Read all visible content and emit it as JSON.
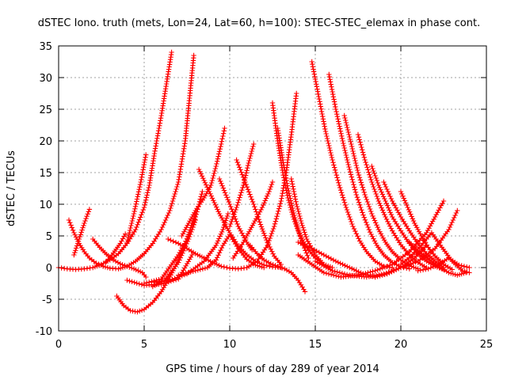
{
  "chart_data": {
    "type": "scatter",
    "title": "dSTEC Iono. truth (mets, Lon=24, Lat=60, h=100): STEC-STEC_elemax in phase cont.",
    "xlabel": "GPS time / hours of day 289 of year 2014",
    "ylabel": "dSTEC  / TECUs",
    "xlim": [
      0,
      25
    ],
    "ylim": [
      -10,
      35
    ],
    "xticks": [
      0,
      5,
      10,
      15,
      20,
      25
    ],
    "yticks": [
      -10,
      -5,
      0,
      5,
      10,
      15,
      20,
      25,
      30,
      35
    ],
    "grid": true,
    "marker": "+",
    "color": "#ff0000",
    "series": [
      {
        "x": [
          0.0,
          0.5,
          1.0,
          1.5,
          2.0,
          2.5,
          3.0,
          3.5,
          4.0,
          4.5,
          5.0,
          5.3,
          5.6,
          6.0,
          6.3,
          6.6
        ],
        "y": [
          0.0,
          -0.2,
          -0.3,
          -0.2,
          0.0,
          0.5,
          1.2,
          2.2,
          3.8,
          6.0,
          9.5,
          13.0,
          18.0,
          24.0,
          29.0,
          34.0
        ]
      },
      {
        "x": [
          0.6,
          0.9,
          1.2,
          1.5,
          1.8,
          2.2,
          2.6,
          3.0,
          3.5,
          4.0,
          4.5,
          5.0,
          5.5,
          6.0,
          6.5,
          7.0,
          7.4,
          7.9
        ],
        "y": [
          7.5,
          5.5,
          3.8,
          2.5,
          1.5,
          0.7,
          0.2,
          -0.1,
          -0.2,
          0.2,
          1.0,
          2.2,
          3.8,
          6.0,
          9.0,
          13.5,
          20.0,
          33.5
        ]
      },
      {
        "x": [
          0.9,
          1.2,
          1.5,
          1.8
        ],
        "y": [
          2.0,
          4.5,
          7.0,
          9.2
        ]
      },
      {
        "x": [
          2.0,
          2.4,
          2.8,
          3.2,
          3.6,
          4.0,
          4.4,
          4.9,
          5.1
        ],
        "y": [
          4.5,
          3.2,
          2.1,
          1.2,
          0.6,
          0.2,
          -0.2,
          -0.8,
          -1.5
        ]
      },
      {
        "x": [
          2.8,
          3.2,
          3.6,
          3.9
        ],
        "y": [
          1.0,
          2.3,
          3.8,
          5.3
        ]
      },
      {
        "x": [
          3.4,
          3.8,
          4.2,
          4.6,
          5.0,
          5.5,
          6.0,
          6.5,
          7.0,
          7.5,
          8.0
        ],
        "y": [
          -4.5,
          -6.0,
          -6.8,
          -7.0,
          -6.6,
          -5.5,
          -3.8,
          -1.5,
          1.2,
          4.5,
          8.5
        ]
      },
      {
        "x": [
          4.0,
          4.4,
          4.8,
          5.1
        ],
        "y": [
          4.0,
          8.5,
          13.5,
          17.8
        ]
      },
      {
        "x": [
          4.0,
          5.0,
          6.0,
          7.0,
          7.8
        ],
        "y": [
          -2.0,
          -2.8,
          -2.6,
          -1.8,
          2.0
        ]
      },
      {
        "x": [
          5.0,
          6.0,
          7.0,
          7.8,
          8.2,
          8.4
        ],
        "y": [
          -2.5,
          -1.8,
          2.0,
          6.0,
          10.0,
          12.0
        ]
      },
      {
        "x": [
          5.5,
          6.2,
          7.0,
          7.6,
          8.0
        ],
        "y": [
          -3.0,
          -2.0,
          0.8,
          4.5,
          7.5
        ]
      },
      {
        "x": [
          6.4,
          7.0,
          7.5,
          8.0,
          8.5,
          9.0,
          9.5,
          10.0,
          10.5,
          11.0
        ],
        "y": [
          4.5,
          3.8,
          3.0,
          2.2,
          1.5,
          0.8,
          0.2,
          -0.1,
          -0.2,
          0.0
        ]
      },
      {
        "x": [
          5.6,
          6.5,
          7.5,
          8.5,
          9.2,
          9.6,
          9.9
        ],
        "y": [
          -2.3,
          -2.0,
          -1.0,
          1.0,
          3.5,
          6.0,
          8.5
        ]
      },
      {
        "x": [
          7.0,
          8.0,
          8.7,
          9.2,
          9.6,
          10.0,
          10.5,
          11.0,
          11.5,
          12.0
        ],
        "y": [
          -1.2,
          -0.5,
          0.0,
          1.2,
          3.5,
          5.2,
          3.0,
          1.3,
          0.4,
          0.0
        ]
      },
      {
        "x": [
          7.2,
          7.6,
          8.0,
          8.5,
          8.9,
          9.2,
          9.5,
          9.7
        ],
        "y": [
          5.0,
          7.0,
          9.0,
          11.0,
          13.0,
          16.0,
          19.5,
          22.0
        ]
      },
      {
        "x": [
          8.2,
          8.8,
          9.4,
          10.0,
          10.5,
          11.0,
          11.5,
          12.0,
          12.5,
          13.0
        ],
        "y": [
          15.5,
          12.0,
          8.5,
          5.5,
          3.4,
          2.0,
          1.0,
          0.4,
          0.1,
          0.0
        ]
      },
      {
        "x": [
          9.4,
          10.0,
          10.5,
          11.0,
          11.3
        ],
        "y": [
          14.0,
          10.0,
          6.5,
          4.0,
          2.8
        ]
      },
      {
        "x": [
          10.4,
          10.9,
          11.4,
          11.8,
          12.2,
          12.6,
          13.0
        ],
        "y": [
          17.0,
          13.5,
          10.0,
          6.8,
          4.0,
          1.8,
          0.5
        ]
      },
      {
        "x": [
          10.0,
          10.4,
          10.8,
          11.1,
          11.4
        ],
        "y": [
          6.5,
          9.5,
          13.0,
          16.5,
          19.5
        ]
      },
      {
        "x": [
          10.2,
          10.8,
          11.4,
          11.9,
          12.3,
          12.5
        ],
        "y": [
          1.5,
          4.0,
          7.0,
          9.5,
          12.0,
          13.5
        ]
      },
      {
        "x": [
          11.2,
          11.6,
          12.0,
          12.4,
          12.8,
          13.2,
          13.6,
          14.0,
          14.4
        ],
        "y": [
          3.5,
          2.2,
          1.2,
          0.6,
          0.2,
          -0.2,
          -0.8,
          -2.0,
          -3.8
        ]
      },
      {
        "x": [
          12.5,
          12.8,
          13.1,
          13.4,
          13.7,
          14.0,
          14.3,
          14.6,
          15.0,
          15.5,
          16.0
        ],
        "y": [
          26.0,
          20.0,
          15.0,
          11.0,
          8.0,
          5.8,
          4.0,
          2.8,
          1.5,
          0.5,
          0.0
        ]
      },
      {
        "x": [
          12.8,
          13.1,
          13.4,
          13.7,
          14.0,
          14.3,
          14.6
        ],
        "y": [
          22.0,
          17.0,
          12.5,
          9.0,
          6.0,
          3.5,
          1.5
        ]
      },
      {
        "x": [
          11.0,
          11.6,
          12.2,
          12.6,
          13.0,
          13.3,
          13.6,
          13.9
        ],
        "y": [
          0.0,
          1.0,
          3.5,
          6.5,
          10.5,
          15.0,
          21.0,
          27.5
        ]
      },
      {
        "x": [
          13.6,
          13.9,
          14.2,
          14.5,
          15.0,
          15.5,
          16.0
        ],
        "y": [
          14.0,
          10.0,
          7.0,
          4.5,
          2.0,
          0.5,
          -0.5
        ]
      },
      {
        "x": [
          14.8,
          15.2,
          15.6,
          16.0,
          16.4,
          16.8,
          17.2,
          17.6,
          18.0,
          18.5,
          19.0,
          19.5
        ],
        "y": [
          32.5,
          27.0,
          21.5,
          17.0,
          13.0,
          9.5,
          6.5,
          4.2,
          2.5,
          1.0,
          0.2,
          0.0
        ]
      },
      {
        "x": [
          15.8,
          16.2,
          16.6,
          17.0,
          17.4,
          17.8,
          18.2,
          18.6,
          19.0,
          19.5,
          20.0,
          20.5
        ],
        "y": [
          30.5,
          25.0,
          20.0,
          15.5,
          11.5,
          8.3,
          5.6,
          3.5,
          2.0,
          0.8,
          0.1,
          -0.2
        ]
      },
      {
        "x": [
          16.7,
          17.1,
          17.5,
          17.9,
          18.3,
          18.7,
          19.1,
          19.5,
          20.0,
          20.5,
          21.0
        ],
        "y": [
          24.0,
          19.5,
          15.0,
          11.5,
          8.5,
          6.0,
          4.0,
          2.5,
          1.2,
          0.3,
          -0.2
        ]
      },
      {
        "x": [
          17.5,
          17.9,
          18.3,
          18.7,
          19.1,
          19.5,
          20.0,
          20.5,
          21.0,
          21.5
        ],
        "y": [
          21.0,
          17.0,
          13.5,
          10.5,
          8.0,
          5.8,
          3.6,
          2.0,
          0.8,
          0.0
        ]
      },
      {
        "x": [
          18.3,
          18.7,
          19.1,
          19.5,
          20.0,
          20.5,
          21.0,
          21.5,
          22.0,
          22.5
        ],
        "y": [
          16.0,
          13.0,
          10.5,
          8.0,
          5.8,
          3.8,
          2.2,
          1.0,
          0.2,
          -0.3
        ]
      },
      {
        "x": [
          19.0,
          19.5,
          20.0,
          20.5,
          21.0,
          21.5,
          22.0,
          22.5
        ],
        "y": [
          13.5,
          10.5,
          8.0,
          5.8,
          3.8,
          2.2,
          1.0,
          0.0
        ]
      },
      {
        "x": [
          20.0,
          20.4,
          20.8,
          21.2,
          21.6,
          22.0,
          22.5,
          23.0
        ],
        "y": [
          12.0,
          9.5,
          7.0,
          5.0,
          3.2,
          1.8,
          0.5,
          -0.3
        ]
      },
      {
        "x": [
          14.0,
          14.8,
          15.5,
          16.2,
          17.0,
          17.8,
          18.5,
          19.2,
          20.0,
          20.8,
          21.5
        ],
        "y": [
          4.0,
          3.0,
          2.0,
          1.0,
          0.0,
          -1.0,
          -1.5,
          -1.0,
          0.0,
          1.5,
          3.5
        ]
      },
      {
        "x": [
          14.0,
          14.8,
          15.5,
          16.5,
          17.5,
          18.5,
          19.5,
          20.5,
          21.5,
          22.0,
          22.5
        ],
        "y": [
          2.0,
          0.5,
          -0.8,
          -1.5,
          -1.2,
          -0.5,
          0.5,
          2.5,
          5.5,
          8.0,
          10.5
        ]
      },
      {
        "x": [
          15.0,
          16.0,
          17.0,
          18.0,
          19.0,
          20.0,
          21.0,
          22.0,
          22.8,
          23.3
        ],
        "y": [
          1.0,
          -0.5,
          -1.2,
          -1.5,
          -1.0,
          0.0,
          1.0,
          3.0,
          6.0,
          9.0
        ]
      },
      {
        "x": [
          20.0,
          20.6,
          21.2,
          21.8,
          22.4,
          23.0,
          23.6,
          24.0
        ],
        "y": [
          0.5,
          1.8,
          3.5,
          5.5,
          3.2,
          1.0,
          -0.5,
          -0.8
        ]
      },
      {
        "x": [
          20.5,
          21.2,
          21.8,
          22.3,
          22.8,
          23.3,
          23.8
        ],
        "y": [
          4.0,
          2.2,
          1.0,
          0.0,
          -0.8,
          -1.2,
          -0.8
        ]
      },
      {
        "x": [
          21.0,
          21.6,
          22.2,
          22.8,
          23.4,
          24.0
        ],
        "y": [
          -0.5,
          -0.2,
          0.5,
          1.5,
          0.4,
          0.0
        ]
      }
    ]
  }
}
